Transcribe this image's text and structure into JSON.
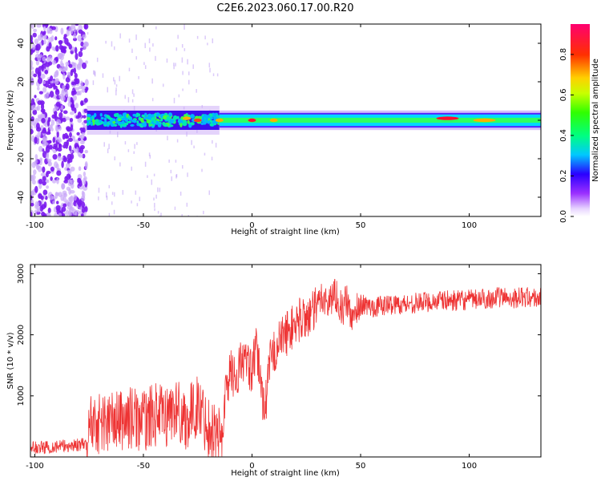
{
  "figure_title": "C2E6.2023.060.17.00.R20",
  "chart_data": [
    {
      "type": "heatmap",
      "title": "",
      "xlabel": "Height of straight line (km)",
      "ylabel": "Frequency (Hz)",
      "xlim": [
        -102,
        133
      ],
      "ylim": [
        -50,
        50
      ],
      "xticks": [
        -100,
        -50,
        0,
        50,
        100
      ],
      "xtick_labels": [
        "-100",
        "-50",
        "0",
        "50",
        "100"
      ],
      "yticks": [
        -40,
        -20,
        0,
        20,
        40
      ],
      "ytick_labels": [
        "-40",
        "-20",
        "0",
        "20",
        "40"
      ],
      "colorbar": {
        "label": "Normalized spectral amplitude",
        "range": [
          0,
          0.95
        ],
        "ticks": [
          0.0,
          0.2,
          0.4,
          0.6,
          0.8
        ],
        "tick_labels": [
          "0.0",
          "0.2",
          "0.4",
          "0.6",
          "0.8"
        ],
        "colormap": "gist_rainbow_r"
      },
      "regions": [
        {
          "x": [
            -102,
            -76
          ],
          "description": "broadband noise, low amplitude (~0.0-0.2)"
        },
        {
          "x": [
            -76,
            -15
          ],
          "freq_band_hz": [
            -5,
            5
          ],
          "amplitude": "0.2-0.5"
        },
        {
          "x": [
            -15,
            133
          ],
          "freq_band_hz": [
            -3,
            3
          ],
          "amplitude": "0.4-0.9"
        }
      ],
      "hotspots": [
        {
          "x": -30,
          "y": 1,
          "amplitude": 0.8
        },
        {
          "x": -25,
          "y": 0,
          "amplitude": 0.85
        },
        {
          "x": -15,
          "y": 0,
          "amplitude": 0.8
        },
        {
          "x": 0,
          "y": 0,
          "amplitude": 0.9
        },
        {
          "x": 10,
          "y": 0,
          "amplitude": 0.8
        },
        {
          "x": 90,
          "y": 1,
          "amplitude": 0.9
        },
        {
          "x": 107,
          "y": 0,
          "amplitude": 0.8
        }
      ]
    },
    {
      "type": "line",
      "title": "",
      "xlabel": "Height of straight line (km)",
      "ylabel": "SNR (10 * v/v)",
      "xlim": [
        -102,
        133
      ],
      "ylim": [
        0,
        3150
      ],
      "xticks": [
        -100,
        -50,
        0,
        50,
        100
      ],
      "xtick_labels": [
        "-100",
        "-50",
        "0",
        "50",
        "100"
      ],
      "yticks": [
        1000,
        2000,
        3000
      ],
      "ytick_labels": [
        "1000",
        "2000",
        "3000"
      ],
      "color": "#ee3333",
      "series": [
        {
          "name": "SNR",
          "x": [
            -102,
            -95,
            -90,
            -85,
            -80,
            -76,
            -74,
            -70,
            -65,
            -60,
            -55,
            -50,
            -45,
            -40,
            -35,
            -30,
            -25,
            -20,
            -16,
            -14,
            -12,
            -10,
            -7,
            -5,
            -3,
            0,
            2,
            4,
            5,
            7,
            8,
            10,
            12,
            15,
            18,
            22,
            25,
            28,
            30,
            32,
            35,
            38,
            40,
            42,
            43,
            45,
            47,
            48,
            50,
            55,
            60,
            65,
            70,
            75,
            80,
            85,
            90,
            95,
            100,
            105,
            110,
            115,
            120,
            125,
            130,
            133
          ],
          "y": [
            150,
            160,
            170,
            180,
            200,
            200,
            600,
            550,
            580,
            600,
            650,
            580,
            700,
            650,
            800,
            600,
            850,
            500,
            400,
            300,
            1100,
            1400,
            1300,
            1600,
            1550,
            1400,
            1750,
            1300,
            900,
            1000,
            1550,
            1700,
            1850,
            2000,
            2100,
            2250,
            2300,
            2350,
            2450,
            2650,
            2500,
            2700,
            2550,
            2350,
            2600,
            2400,
            2200,
            2450,
            2500,
            2450,
            2480,
            2500,
            2500,
            2520,
            2540,
            2550,
            2560,
            2560,
            2570,
            2580,
            2600,
            2620,
            2600,
            2620,
            2600,
            2600
          ]
        }
      ]
    }
  ]
}
